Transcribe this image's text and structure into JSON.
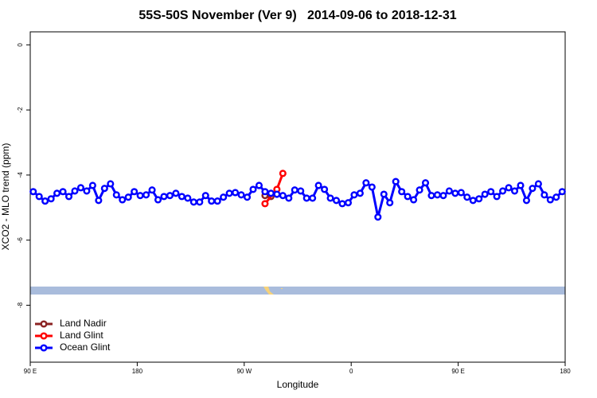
{
  "chart_data": {
    "type": "line",
    "title": "55S-50S November (Ver 9)   2014-09-06 to 2018-12-31",
    "x_label": "Longitude",
    "y_label": "XCO2 - MLO trend (ppm)",
    "xlim": [
      90,
      540
    ],
    "ylim": [
      -9.75,
      0.4
    ],
    "xticks": [
      {
        "value": 90,
        "label": "90 E"
      },
      {
        "value": 180,
        "label": "180"
      },
      {
        "value": 270,
        "label": "90 W"
      },
      {
        "value": 360,
        "label": "0"
      },
      {
        "value": 450,
        "label": "90 E"
      },
      {
        "value": 540,
        "label": "180"
      }
    ],
    "yticks": [
      0,
      -2,
      -4,
      -6,
      -8
    ],
    "legend": "bottom-left",
    "series": [
      {
        "name": "Land Nadir",
        "color": "#8b2323",
        "x": [
          287.5,
          292.5
        ],
        "values": [
          -4.63,
          -4.66
        ]
      },
      {
        "name": "Land Glint",
        "color": "#ff0000",
        "x": [
          287.5,
          297.5,
          302.5
        ],
        "values": [
          -4.88,
          -4.44,
          -3.95
        ]
      },
      {
        "name": "Ocean Glint",
        "color": "#0000ff",
        "x": [
          92.5,
          97.5,
          102.5,
          107.5,
          112.5,
          117.5,
          122.5,
          127.5,
          132.5,
          137.5,
          142.5,
          147.5,
          152.5,
          157.5,
          162.5,
          167.5,
          172.5,
          177.5,
          182.5,
          187.5,
          192.5,
          197.5,
          202.5,
          207.5,
          212.5,
          217.5,
          222.5,
          227.5,
          232.5,
          237.5,
          242.5,
          247.5,
          252.5,
          257.5,
          262.5,
          267.5,
          272.5,
          277.5,
          282.5,
          287.5,
          292.5,
          297.5,
          302.5,
          307.5,
          312.5,
          317.5,
          322.5,
          327.5,
          332.5,
          337.5,
          342.5,
          347.5,
          352.5,
          357.5,
          362.5,
          367.5,
          372.5,
          377.5,
          382.5,
          387.5,
          392.5,
          397.5,
          402.5,
          407.5,
          412.5,
          417.5,
          422.5,
          427.5,
          432.5,
          437.5,
          442.5,
          447.5,
          452.5,
          457.5,
          462.5,
          467.5,
          472.5,
          477.5,
          482.5,
          487.5,
          492.5,
          497.5,
          502.5,
          507.5,
          512.5,
          517.5,
          522.5,
          527.5,
          532.5,
          537.5
        ],
        "values": [
          -4.51,
          -4.66,
          -4.8,
          -4.73,
          -4.56,
          -4.51,
          -4.66,
          -4.49,
          -4.39,
          -4.49,
          -4.32,
          -4.78,
          -4.41,
          -4.27,
          -4.61,
          -4.76,
          -4.68,
          -4.51,
          -4.63,
          -4.61,
          -4.46,
          -4.76,
          -4.66,
          -4.63,
          -4.56,
          -4.66,
          -4.71,
          -4.83,
          -4.83,
          -4.63,
          -4.8,
          -4.8,
          -4.68,
          -4.56,
          -4.54,
          -4.61,
          -4.68,
          -4.44,
          -4.32,
          -4.51,
          -4.56,
          -4.59,
          -4.63,
          -4.71,
          -4.46,
          -4.49,
          -4.71,
          -4.71,
          -4.32,
          -4.44,
          -4.71,
          -4.78,
          -4.88,
          -4.85,
          -4.61,
          -4.56,
          -4.24,
          -4.37,
          -5.29,
          -4.59,
          -4.85,
          -4.2,
          -4.51,
          -4.66,
          -4.76,
          -4.46,
          -4.24,
          -4.63,
          -4.61,
          -4.63,
          -4.49,
          -4.56,
          -4.54,
          -4.68,
          -4.78,
          -4.73,
          -4.59,
          -4.51,
          -4.66,
          -4.49,
          -4.39,
          -4.49,
          -4.32,
          -4.78,
          -4.41,
          -4.27,
          -4.61,
          -4.76,
          -4.68,
          -4.51
        ]
      }
    ]
  }
}
